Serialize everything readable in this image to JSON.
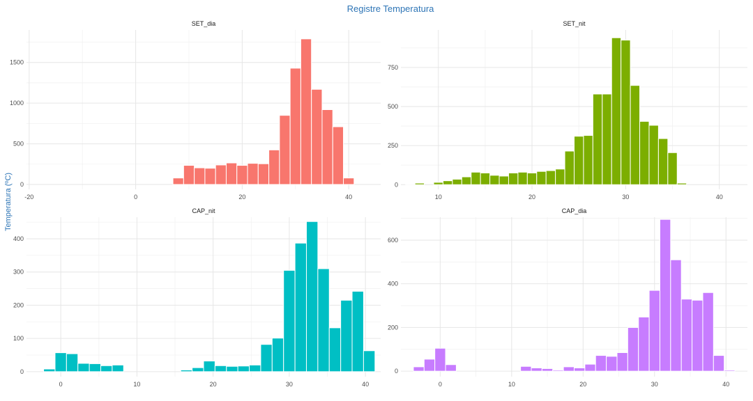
{
  "title": "Registre Temperatura",
  "ylabel": "Temperatura (ºC)",
  "chart_data": [
    {
      "type": "bar",
      "panel": "SET_dia",
      "title": "SET_dia",
      "color": "#F8766D",
      "xlim": [
        -20.5,
        46
      ],
      "ylim": [
        -60,
        1900
      ],
      "xticks": [
        -20,
        0,
        20,
        40
      ],
      "yticks": [
        0,
        500,
        1000,
        1500
      ],
      "bin_width": 2,
      "bins": [
        {
          "x": 8,
          "y": 80
        },
        {
          "x": 10,
          "y": 235
        },
        {
          "x": 12,
          "y": 205
        },
        {
          "x": 14,
          "y": 200
        },
        {
          "x": 16,
          "y": 240
        },
        {
          "x": 18,
          "y": 265
        },
        {
          "x": 20,
          "y": 235
        },
        {
          "x": 22,
          "y": 260
        },
        {
          "x": 24,
          "y": 255
        },
        {
          "x": 26,
          "y": 425
        },
        {
          "x": 28,
          "y": 850
        },
        {
          "x": 30,
          "y": 1430
        },
        {
          "x": 32,
          "y": 1790
        },
        {
          "x": 34,
          "y": 1170
        },
        {
          "x": 36,
          "y": 920
        },
        {
          "x": 38,
          "y": 710
        },
        {
          "x": 40,
          "y": 80
        }
      ]
    },
    {
      "type": "bar",
      "panel": "SET_nit",
      "title": "SET_nit",
      "color": "#7CAE00",
      "xlim": [
        6,
        43
      ],
      "ylim": [
        -30,
        990
      ],
      "xticks": [
        10,
        20,
        30,
        40
      ],
      "yticks": [
        0,
        250,
        500,
        750
      ],
      "bin_width": 1,
      "bins": [
        {
          "x": 7,
          "y": 3
        },
        {
          "x": 8,
          "y": 10
        },
        {
          "x": 9,
          "y": 0
        },
        {
          "x": 10,
          "y": 15
        },
        {
          "x": 11,
          "y": 25
        },
        {
          "x": 12,
          "y": 35
        },
        {
          "x": 13,
          "y": 50
        },
        {
          "x": 14,
          "y": 80
        },
        {
          "x": 15,
          "y": 75
        },
        {
          "x": 16,
          "y": 60
        },
        {
          "x": 17,
          "y": 55
        },
        {
          "x": 18,
          "y": 75
        },
        {
          "x": 19,
          "y": 80
        },
        {
          "x": 20,
          "y": 75
        },
        {
          "x": 21,
          "y": 85
        },
        {
          "x": 22,
          "y": 90
        },
        {
          "x": 23,
          "y": 100
        },
        {
          "x": 24,
          "y": 215
        },
        {
          "x": 25,
          "y": 310
        },
        {
          "x": 26,
          "y": 315
        },
        {
          "x": 27,
          "y": 580
        },
        {
          "x": 28,
          "y": 580
        },
        {
          "x": 29,
          "y": 940
        },
        {
          "x": 30,
          "y": 925
        },
        {
          "x": 31,
          "y": 635
        },
        {
          "x": 32,
          "y": 405
        },
        {
          "x": 33,
          "y": 380
        },
        {
          "x": 34,
          "y": 295
        },
        {
          "x": 35,
          "y": 205
        },
        {
          "x": 36,
          "y": 10
        }
      ]
    },
    {
      "type": "bar",
      "panel": "CAP_nit",
      "title": "CAP_nit",
      "color": "#00BFC4",
      "xlim": [
        -4.5,
        42
      ],
      "ylim": [
        -15,
        465
      ],
      "xticks": [
        0,
        10,
        20,
        30,
        40
      ],
      "yticks": [
        0,
        100,
        200,
        300,
        400
      ],
      "bin_width": 1.5,
      "bins": [
        {
          "x": -1.5,
          "y": 8
        },
        {
          "x": 0,
          "y": 57
        },
        {
          "x": 1.5,
          "y": 54
        },
        {
          "x": 3,
          "y": 25
        },
        {
          "x": 4.5,
          "y": 24
        },
        {
          "x": 6,
          "y": 18
        },
        {
          "x": 7.5,
          "y": 20
        },
        {
          "x": 16.5,
          "y": 5
        },
        {
          "x": 18,
          "y": 12
        },
        {
          "x": 19.5,
          "y": 32
        },
        {
          "x": 21,
          "y": 18
        },
        {
          "x": 22.5,
          "y": 16
        },
        {
          "x": 24,
          "y": 17
        },
        {
          "x": 25.5,
          "y": 20
        },
        {
          "x": 27,
          "y": 82
        },
        {
          "x": 28.5,
          "y": 101
        },
        {
          "x": 30,
          "y": 305
        },
        {
          "x": 31.5,
          "y": 387
        },
        {
          "x": 33,
          "y": 452
        },
        {
          "x": 34.5,
          "y": 310
        },
        {
          "x": 36,
          "y": 132
        },
        {
          "x": 37.5,
          "y": 215
        },
        {
          "x": 39,
          "y": 242
        },
        {
          "x": 40.5,
          "y": 63
        }
      ]
    },
    {
      "type": "bar",
      "panel": "CAP_dia",
      "title": "CAP_dia",
      "color": "#C77CFF",
      "xlim": [
        -5.5,
        43
      ],
      "ylim": [
        -25,
        705
      ],
      "xticks": [
        0,
        10,
        20,
        30,
        40
      ],
      "yticks": [
        0,
        200,
        400,
        600
      ],
      "bin_width": 1.5,
      "bins": [
        {
          "x": -3,
          "y": 20
        },
        {
          "x": -1.5,
          "y": 55
        },
        {
          "x": 0,
          "y": 105
        },
        {
          "x": 1.5,
          "y": 30
        },
        {
          "x": 12,
          "y": 22
        },
        {
          "x": 13.5,
          "y": 15
        },
        {
          "x": 15,
          "y": 12
        },
        {
          "x": 16.5,
          "y": 5
        },
        {
          "x": 18,
          "y": 20
        },
        {
          "x": 19.5,
          "y": 15
        },
        {
          "x": 21,
          "y": 32
        },
        {
          "x": 22.5,
          "y": 72
        },
        {
          "x": 24,
          "y": 68
        },
        {
          "x": 25.5,
          "y": 85
        },
        {
          "x": 27,
          "y": 200
        },
        {
          "x": 28.5,
          "y": 248
        },
        {
          "x": 30,
          "y": 370
        },
        {
          "x": 31.5,
          "y": 695
        },
        {
          "x": 33,
          "y": 510
        },
        {
          "x": 34.5,
          "y": 330
        },
        {
          "x": 36,
          "y": 325
        },
        {
          "x": 37.5,
          "y": 360
        },
        {
          "x": 39,
          "y": 72
        },
        {
          "x": 40.5,
          "y": 5
        }
      ]
    }
  ]
}
